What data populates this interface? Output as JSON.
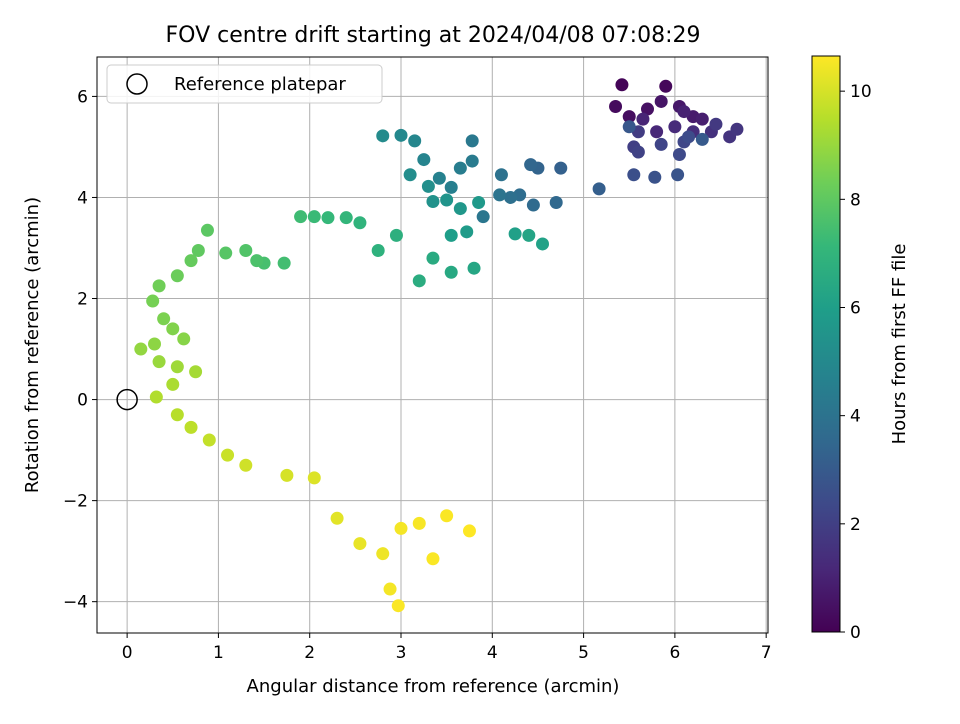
{
  "chart_data": {
    "type": "scatter",
    "title": "FOV centre drift starting at 2024/04/08 07:08:29",
    "xlabel": "Angular distance from reference (arcmin)",
    "ylabel": "Rotation from reference (arcmin)",
    "xlim": [
      -0.33,
      7.02
    ],
    "ylim": [
      -4.62,
      6.78
    ],
    "xticks": [
      "0",
      "1",
      "2",
      "3",
      "4",
      "5",
      "6",
      "7"
    ],
    "yticks": [
      "−4",
      "−2",
      "0",
      "2",
      "4",
      "6"
    ],
    "grid": true,
    "legend": {
      "placement": "top-left",
      "entries": [
        "Reference platepar"
      ]
    },
    "reference_point": {
      "x": 0,
      "y": 0
    },
    "colorbar": {
      "label": "Hours from first FF file",
      "colormap": "viridis",
      "range": [
        0,
        10.65
      ],
      "ticks": [
        "0",
        "2",
        "4",
        "6",
        "8",
        "10"
      ]
    },
    "series": [
      {
        "marker_values": "hours",
        "points": [
          [
            5.42,
            6.23,
            0.1
          ],
          [
            5.9,
            6.2,
            0.2
          ],
          [
            5.35,
            5.8,
            0.3
          ],
          [
            5.5,
            5.6,
            0.4
          ],
          [
            5.7,
            5.75,
            0.5
          ],
          [
            5.85,
            5.9,
            0.6
          ],
          [
            6.05,
            5.8,
            0.7
          ],
          [
            6.2,
            5.6,
            0.8
          ],
          [
            6.3,
            5.55,
            0.9
          ],
          [
            6.1,
            5.7,
            1.0
          ],
          [
            5.65,
            5.55,
            1.1
          ],
          [
            5.8,
            5.3,
            1.2
          ],
          [
            6.0,
            5.4,
            1.3
          ],
          [
            6.2,
            5.3,
            1.4
          ],
          [
            6.4,
            5.3,
            1.5
          ],
          [
            6.6,
            5.2,
            1.6
          ],
          [
            6.68,
            5.35,
            1.7
          ],
          [
            6.45,
            5.45,
            1.8
          ],
          [
            5.6,
            5.3,
            1.9
          ],
          [
            5.55,
            5.0,
            2.0
          ],
          [
            5.6,
            4.9,
            2.1
          ],
          [
            5.85,
            5.05,
            2.2
          ],
          [
            6.1,
            5.1,
            2.3
          ],
          [
            6.05,
            4.85,
            2.4
          ],
          [
            6.15,
            5.2,
            2.5
          ],
          [
            5.55,
            4.45,
            2.6
          ],
          [
            5.78,
            4.4,
            2.7
          ],
          [
            6.03,
            4.45,
            2.8
          ],
          [
            5.5,
            5.4,
            2.9
          ],
          [
            6.3,
            5.15,
            3.0
          ],
          [
            5.17,
            4.17,
            3.2
          ],
          [
            4.75,
            4.58,
            3.3
          ],
          [
            4.5,
            4.58,
            3.4
          ],
          [
            4.42,
            4.65,
            3.5
          ],
          [
            4.7,
            3.9,
            3.6
          ],
          [
            4.45,
            3.85,
            3.7
          ],
          [
            4.3,
            4.05,
            3.8
          ],
          [
            4.2,
            4.0,
            3.9
          ],
          [
            4.1,
            4.45,
            4.0
          ],
          [
            4.08,
            4.05,
            4.1
          ],
          [
            3.9,
            3.62,
            4.2
          ],
          [
            3.78,
            5.12,
            4.3
          ],
          [
            3.78,
            4.72,
            4.4
          ],
          [
            3.65,
            4.58,
            4.5
          ],
          [
            3.55,
            4.2,
            4.6
          ],
          [
            3.42,
            4.38,
            4.7
          ],
          [
            3.25,
            4.75,
            4.8
          ],
          [
            3.15,
            5.12,
            4.9
          ],
          [
            3.0,
            5.23,
            5.0
          ],
          [
            2.8,
            5.22,
            5.1
          ],
          [
            3.1,
            4.45,
            5.2
          ],
          [
            3.3,
            4.22,
            5.3
          ],
          [
            3.35,
            3.92,
            5.4
          ],
          [
            3.5,
            3.95,
            5.5
          ],
          [
            3.65,
            3.78,
            5.6
          ],
          [
            3.85,
            3.9,
            5.7
          ],
          [
            3.72,
            3.32,
            5.8
          ],
          [
            3.55,
            3.25,
            5.9
          ],
          [
            4.25,
            3.28,
            6.0
          ],
          [
            4.55,
            3.08,
            6.1
          ],
          [
            4.4,
            3.25,
            6.2
          ],
          [
            3.8,
            2.6,
            6.3
          ],
          [
            3.55,
            2.52,
            6.4
          ],
          [
            3.35,
            2.8,
            6.5
          ],
          [
            3.2,
            2.35,
            6.6
          ],
          [
            2.95,
            3.25,
            6.7
          ],
          [
            2.75,
            2.95,
            6.8
          ],
          [
            2.55,
            3.5,
            6.9
          ],
          [
            2.4,
            3.6,
            7.0
          ],
          [
            2.2,
            3.6,
            7.1
          ],
          [
            2.05,
            3.62,
            7.2
          ],
          [
            1.9,
            3.62,
            7.3
          ],
          [
            1.72,
            2.7,
            7.4
          ],
          [
            1.5,
            2.7,
            7.5
          ],
          [
            1.42,
            2.75,
            7.6
          ],
          [
            1.3,
            2.95,
            7.7
          ],
          [
            1.08,
            2.9,
            7.8
          ],
          [
            0.88,
            3.35,
            7.9
          ],
          [
            0.78,
            2.95,
            8.0
          ],
          [
            0.7,
            2.75,
            8.1
          ],
          [
            0.55,
            2.45,
            8.2
          ],
          [
            0.35,
            2.25,
            8.3
          ],
          [
            0.28,
            1.95,
            8.4
          ],
          [
            0.4,
            1.6,
            8.5
          ],
          [
            0.5,
            1.4,
            8.6
          ],
          [
            0.62,
            1.2,
            8.7
          ],
          [
            0.3,
            1.1,
            8.8
          ],
          [
            0.15,
            1.0,
            8.9
          ],
          [
            0.35,
            0.75,
            9.0
          ],
          [
            0.55,
            0.65,
            9.1
          ],
          [
            0.75,
            0.55,
            9.2
          ],
          [
            0.5,
            0.3,
            9.3
          ],
          [
            0.32,
            0.05,
            9.4
          ],
          [
            0.55,
            -0.3,
            9.5
          ],
          [
            0.7,
            -0.55,
            9.6
          ],
          [
            0.9,
            -0.8,
            9.7
          ],
          [
            1.1,
            -1.1,
            9.8
          ],
          [
            1.3,
            -1.3,
            9.9
          ],
          [
            1.75,
            -1.5,
            10.0
          ],
          [
            2.05,
            -1.55,
            10.1
          ],
          [
            2.3,
            -2.35,
            10.2
          ],
          [
            2.55,
            -2.85,
            10.3
          ],
          [
            2.8,
            -3.05,
            10.4
          ],
          [
            3.0,
            -2.55,
            10.5
          ],
          [
            3.2,
            -2.45,
            10.55
          ],
          [
            3.5,
            -2.3,
            10.6
          ],
          [
            3.75,
            -2.6,
            10.65
          ],
          [
            3.35,
            -3.15,
            10.6
          ],
          [
            2.88,
            -3.75,
            10.5
          ],
          [
            2.97,
            -4.08,
            10.6
          ]
        ]
      }
    ]
  }
}
